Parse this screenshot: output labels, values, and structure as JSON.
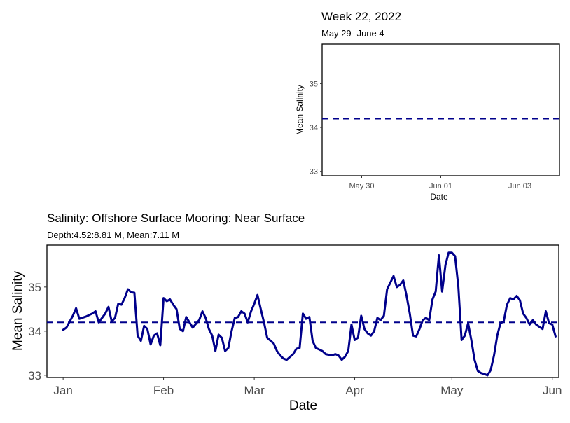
{
  "chart_data": [
    {
      "type": "line",
      "title": "Week 22, 2022",
      "subtitle": "May 29- June 4",
      "xlabel": "Date",
      "ylabel": "Mean Salinity",
      "x_range": [
        "2022-05-29",
        "2022-06-04"
      ],
      "ylim": [
        32.9,
        35.9
      ],
      "y_ticks": [
        33,
        34,
        35
      ],
      "x_ticks": [
        {
          "date": "2022-05-30",
          "label": "May 30"
        },
        {
          "date": "2022-06-01",
          "label": "Jun 01"
        },
        {
          "date": "2022-06-03",
          "label": "Jun 03"
        }
      ],
      "reference_line": {
        "value": 34.2,
        "style": "dashed",
        "color": "#00008B"
      },
      "series": [],
      "grid": false
    },
    {
      "type": "line",
      "title": "Salinity: Offshore Surface Mooring: Near Surface",
      "subtitle": "Depth:4.52:8.81 M, Mean:7.11 M",
      "xlabel": "Date",
      "ylabel": "Mean Salinity",
      "x_range": [
        "2021-12-27",
        "2022-06-03"
      ],
      "ylim": [
        32.95,
        35.95
      ],
      "y_ticks": [
        33,
        34,
        35
      ],
      "x_ticks": [
        {
          "date": "2022-01-01",
          "label": "Jan"
        },
        {
          "date": "2022-02-01",
          "label": "Feb"
        },
        {
          "date": "2022-03-01",
          "label": "Mar"
        },
        {
          "date": "2022-04-01",
          "label": "Apr"
        },
        {
          "date": "2022-05-01",
          "label": "May"
        },
        {
          "date": "2022-06-01",
          "label": "Jun"
        }
      ],
      "reference_line": {
        "value": 34.2,
        "style": "dashed",
        "color": "#00008B"
      },
      "grid": false,
      "series": [
        {
          "color": "#00008B",
          "points": [
            [
              "2022-01-01",
              34.03
            ],
            [
              "2022-01-02",
              34.08
            ],
            [
              "2022-01-04",
              34.35
            ],
            [
              "2022-01-05",
              34.52
            ],
            [
              "2022-01-06",
              34.28
            ],
            [
              "2022-01-08",
              34.33
            ],
            [
              "2022-01-10",
              34.4
            ],
            [
              "2022-01-11",
              34.45
            ],
            [
              "2022-01-12",
              34.2
            ],
            [
              "2022-01-14",
              34.4
            ],
            [
              "2022-01-15",
              34.55
            ],
            [
              "2022-01-16",
              34.22
            ],
            [
              "2022-01-17",
              34.3
            ],
            [
              "2022-01-18",
              34.62
            ],
            [
              "2022-01-19",
              34.6
            ],
            [
              "2022-01-20",
              34.75
            ],
            [
              "2022-01-21",
              34.95
            ],
            [
              "2022-01-22",
              34.88
            ],
            [
              "2022-01-23",
              34.87
            ],
            [
              "2022-01-24",
              33.9
            ],
            [
              "2022-01-25",
              33.78
            ],
            [
              "2022-01-26",
              34.12
            ],
            [
              "2022-01-27",
              34.05
            ],
            [
              "2022-01-28",
              33.7
            ],
            [
              "2022-01-29",
              33.9
            ],
            [
              "2022-01-30",
              33.95
            ],
            [
              "2022-01-31",
              33.68
            ],
            [
              "2022-02-01",
              34.75
            ],
            [
              "2022-02-02",
              34.68
            ],
            [
              "2022-02-03",
              34.72
            ],
            [
              "2022-02-04",
              34.6
            ],
            [
              "2022-02-05",
              34.5
            ],
            [
              "2022-02-06",
              34.05
            ],
            [
              "2022-02-07",
              34.0
            ],
            [
              "2022-02-08",
              34.32
            ],
            [
              "2022-02-10",
              34.08
            ],
            [
              "2022-02-12",
              34.25
            ],
            [
              "2022-02-13",
              34.45
            ],
            [
              "2022-02-14",
              34.3
            ],
            [
              "2022-02-15",
              34.05
            ],
            [
              "2022-02-16",
              33.9
            ],
            [
              "2022-02-17",
              33.55
            ],
            [
              "2022-02-18",
              33.92
            ],
            [
              "2022-02-19",
              33.85
            ],
            [
              "2022-02-20",
              33.55
            ],
            [
              "2022-02-21",
              33.62
            ],
            [
              "2022-02-22",
              34.0
            ],
            [
              "2022-02-23",
              34.3
            ],
            [
              "2022-02-24",
              34.32
            ],
            [
              "2022-02-25",
              34.45
            ],
            [
              "2022-02-26",
              34.4
            ],
            [
              "2022-02-27",
              34.2
            ],
            [
              "2022-02-28",
              34.45
            ],
            [
              "2022-03-01",
              34.62
            ],
            [
              "2022-03-02",
              34.82
            ],
            [
              "2022-03-03",
              34.5
            ],
            [
              "2022-03-04",
              34.2
            ],
            [
              "2022-03-05",
              33.85
            ],
            [
              "2022-03-07",
              33.72
            ],
            [
              "2022-03-08",
              33.55
            ],
            [
              "2022-03-09",
              33.45
            ],
            [
              "2022-03-10",
              33.38
            ],
            [
              "2022-03-11",
              33.35
            ],
            [
              "2022-03-13",
              33.48
            ],
            [
              "2022-03-14",
              33.6
            ],
            [
              "2022-03-15",
              33.62
            ],
            [
              "2022-03-16",
              34.4
            ],
            [
              "2022-03-17",
              34.28
            ],
            [
              "2022-03-18",
              34.32
            ],
            [
              "2022-03-19",
              33.78
            ],
            [
              "2022-03-20",
              33.62
            ],
            [
              "2022-03-22",
              33.55
            ],
            [
              "2022-03-23",
              33.48
            ],
            [
              "2022-03-25",
              33.45
            ],
            [
              "2022-03-26",
              33.48
            ],
            [
              "2022-03-27",
              33.45
            ],
            [
              "2022-03-28",
              33.35
            ],
            [
              "2022-03-29",
              33.42
            ],
            [
              "2022-03-30",
              33.55
            ],
            [
              "2022-03-31",
              34.15
            ],
            [
              "2022-04-01",
              33.8
            ],
            [
              "2022-04-02",
              33.85
            ],
            [
              "2022-04-03",
              34.35
            ],
            [
              "2022-04-04",
              34.05
            ],
            [
              "2022-04-05",
              33.95
            ],
            [
              "2022-04-06",
              33.9
            ],
            [
              "2022-04-07",
              34.0
            ],
            [
              "2022-04-08",
              34.3
            ],
            [
              "2022-04-09",
              34.25
            ],
            [
              "2022-04-10",
              34.35
            ],
            [
              "2022-04-11",
              34.95
            ],
            [
              "2022-04-12",
              35.1
            ],
            [
              "2022-04-13",
              35.25
            ],
            [
              "2022-04-14",
              35.0
            ],
            [
              "2022-04-15",
              35.05
            ],
            [
              "2022-04-16",
              35.15
            ],
            [
              "2022-04-17",
              34.8
            ],
            [
              "2022-04-18",
              34.4
            ],
            [
              "2022-04-19",
              33.9
            ],
            [
              "2022-04-20",
              33.88
            ],
            [
              "2022-04-21",
              34.05
            ],
            [
              "2022-04-22",
              34.25
            ],
            [
              "2022-04-23",
              34.3
            ],
            [
              "2022-04-24",
              34.25
            ],
            [
              "2022-04-25",
              34.72
            ],
            [
              "2022-04-26",
              34.9
            ],
            [
              "2022-04-27",
              35.72
            ],
            [
              "2022-04-28",
              34.9
            ],
            [
              "2022-04-29",
              35.5
            ],
            [
              "2022-04-30",
              35.78
            ],
            [
              "2022-05-01",
              35.78
            ],
            [
              "2022-05-02",
              35.7
            ],
            [
              "2022-05-03",
              35.0
            ],
            [
              "2022-05-04",
              33.8
            ],
            [
              "2022-05-05",
              33.9
            ],
            [
              "2022-05-06",
              34.18
            ],
            [
              "2022-05-07",
              33.8
            ],
            [
              "2022-05-08",
              33.35
            ],
            [
              "2022-05-09",
              33.1
            ],
            [
              "2022-05-10",
              33.05
            ],
            [
              "2022-05-11",
              33.03
            ],
            [
              "2022-05-12",
              33.0
            ],
            [
              "2022-05-13",
              33.12
            ],
            [
              "2022-05-14",
              33.45
            ],
            [
              "2022-05-15",
              33.9
            ],
            [
              "2022-05-16",
              34.18
            ],
            [
              "2022-05-17",
              34.22
            ],
            [
              "2022-05-18",
              34.6
            ],
            [
              "2022-05-19",
              34.75
            ],
            [
              "2022-05-20",
              34.72
            ],
            [
              "2022-05-21",
              34.8
            ],
            [
              "2022-05-22",
              34.7
            ],
            [
              "2022-05-23",
              34.4
            ],
            [
              "2022-05-24",
              34.3
            ],
            [
              "2022-05-25",
              34.15
            ],
            [
              "2022-05-26",
              34.25
            ],
            [
              "2022-05-27",
              34.15
            ],
            [
              "2022-05-28",
              34.1
            ],
            [
              "2022-05-29",
              34.05
            ],
            [
              "2022-05-30",
              34.45
            ],
            [
              "2022-05-31",
              34.18
            ],
            [
              "2022-06-01",
              34.15
            ],
            [
              "2022-06-02",
              33.88
            ]
          ]
        }
      ]
    }
  ]
}
